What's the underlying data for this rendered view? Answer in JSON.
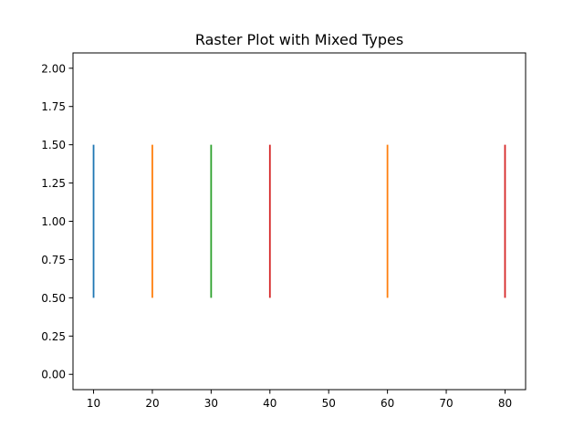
{
  "chart_data": {
    "type": "raster",
    "title": "Raster Plot with Mixed Types",
    "xlabel": "",
    "ylabel": "",
    "xlim": [
      6.5,
      83.5
    ],
    "ylim": [
      -0.1,
      2.1
    ],
    "x_ticks": [
      10,
      20,
      30,
      40,
      50,
      60,
      70,
      80
    ],
    "y_ticks": [
      0.0,
      0.25,
      0.5,
      0.75,
      1.0,
      1.25,
      1.5,
      1.75,
      2.0
    ],
    "x_tick_labels": [
      "10",
      "20",
      "30",
      "40",
      "50",
      "60",
      "70",
      "80"
    ],
    "y_tick_labels": [
      "0.00",
      "0.25",
      "0.50",
      "0.75",
      "1.00",
      "1.25",
      "1.50",
      "1.75",
      "2.00"
    ],
    "grid": false,
    "events": [
      {
        "x": 10,
        "y0": 0.5,
        "y1": 1.5,
        "color": "#1f77b4"
      },
      {
        "x": 20,
        "y0": 0.5,
        "y1": 1.5,
        "color": "#ff7f0e"
      },
      {
        "x": 30,
        "y0": 0.5,
        "y1": 1.5,
        "color": "#2ca02c"
      },
      {
        "x": 40,
        "y0": 0.5,
        "y1": 1.5,
        "color": "#d62728"
      },
      {
        "x": 60,
        "y0": 0.5,
        "y1": 1.5,
        "color": "#ff7f0e"
      },
      {
        "x": 80,
        "y0": 0.5,
        "y1": 1.5,
        "color": "#d62728"
      }
    ]
  }
}
